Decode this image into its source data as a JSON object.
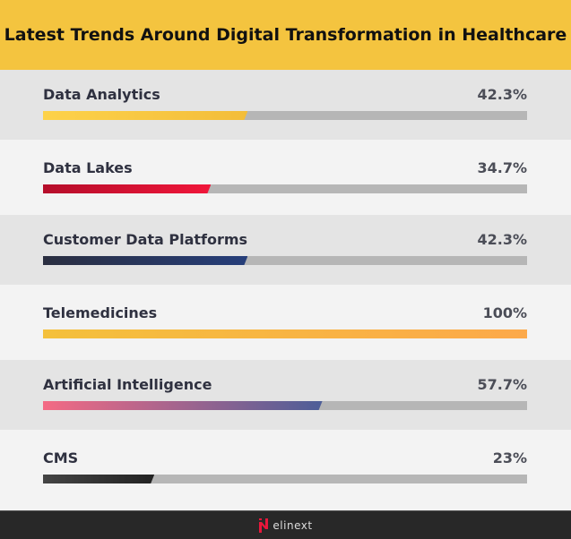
{
  "chart_data": {
    "type": "bar",
    "orientation": "horizontal",
    "title": "Latest Trends Around Digital Transformation in Healthcare",
    "categories": [
      "Data Analytics",
      "Data Lakes",
      "Customer Data Platforms",
      "Telemedicines",
      "Artificial Intelligence",
      "CMS"
    ],
    "values": [
      42.3,
      34.7,
      42.3,
      100,
      57.7,
      23
    ],
    "value_labels": [
      "42.3%",
      "34.7%",
      "42.3%",
      "100%",
      "57.7%",
      "23%"
    ],
    "xlim": [
      0,
      100
    ],
    "colors": [
      [
        "#fdd24a",
        "#f3bd3a"
      ],
      [
        "#b50d2a",
        "#f0163a"
      ],
      [
        "#2a2e40",
        "#263e7a"
      ],
      [
        "#f4c03c",
        "#fca94a"
      ],
      [
        "#f46a84",
        "#4d5e98"
      ],
      [
        "#444444",
        "#222222"
      ]
    ],
    "grid": false
  },
  "footer": {
    "brand": "elinext",
    "logo_color": "#e8173b"
  }
}
